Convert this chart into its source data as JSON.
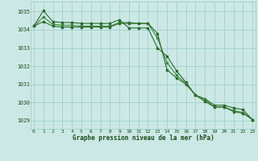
{
  "xlabel": "Graphe pression niveau de la mer (hPa)",
  "hours": [
    0,
    1,
    2,
    3,
    4,
    5,
    6,
    7,
    8,
    9,
    10,
    11,
    12,
    13,
    14,
    15,
    16,
    17,
    18,
    19,
    20,
    21,
    22,
    23
  ],
  "line1": [
    1034.2,
    1035.05,
    1034.45,
    1034.4,
    1034.4,
    1034.35,
    1034.35,
    1034.35,
    1034.35,
    1034.55,
    1034.1,
    1034.1,
    1034.1,
    1033.0,
    1032.55,
    1031.75,
    1031.1,
    1030.4,
    1030.2,
    1029.85,
    1029.85,
    1029.7,
    1029.6,
    1029.05
  ],
  "line2": [
    1034.2,
    1034.7,
    1034.3,
    1034.25,
    1034.25,
    1034.2,
    1034.2,
    1034.2,
    1034.2,
    1034.4,
    1034.4,
    1034.35,
    1034.35,
    1033.55,
    1032.2,
    1031.5,
    1031.05,
    1030.4,
    1030.15,
    1029.75,
    1029.75,
    1029.55,
    1029.45,
    1029.05
  ],
  "line3": [
    1034.2,
    1034.45,
    1034.2,
    1034.15,
    1034.15,
    1034.15,
    1034.15,
    1034.15,
    1034.15,
    1034.35,
    1034.35,
    1034.35,
    1034.35,
    1033.8,
    1031.8,
    1031.35,
    1031.0,
    1030.4,
    1030.05,
    1029.75,
    1029.75,
    1029.5,
    1029.4,
    1029.05
  ],
  "line_color": "#2d6a2d",
  "line_color2": "#3d8b3d",
  "bg_color": "#cce8e5",
  "grid_color": "#99ccc8",
  "text_color": "#1a4a1a",
  "ylim": [
    1028.55,
    1035.55
  ],
  "yticks": [
    1029,
    1030,
    1031,
    1032,
    1033,
    1034,
    1035
  ],
  "xticks": [
    0,
    1,
    2,
    3,
    4,
    5,
    6,
    7,
    8,
    9,
    10,
    11,
    12,
    13,
    14,
    15,
    16,
    17,
    18,
    19,
    20,
    21,
    22,
    23
  ]
}
